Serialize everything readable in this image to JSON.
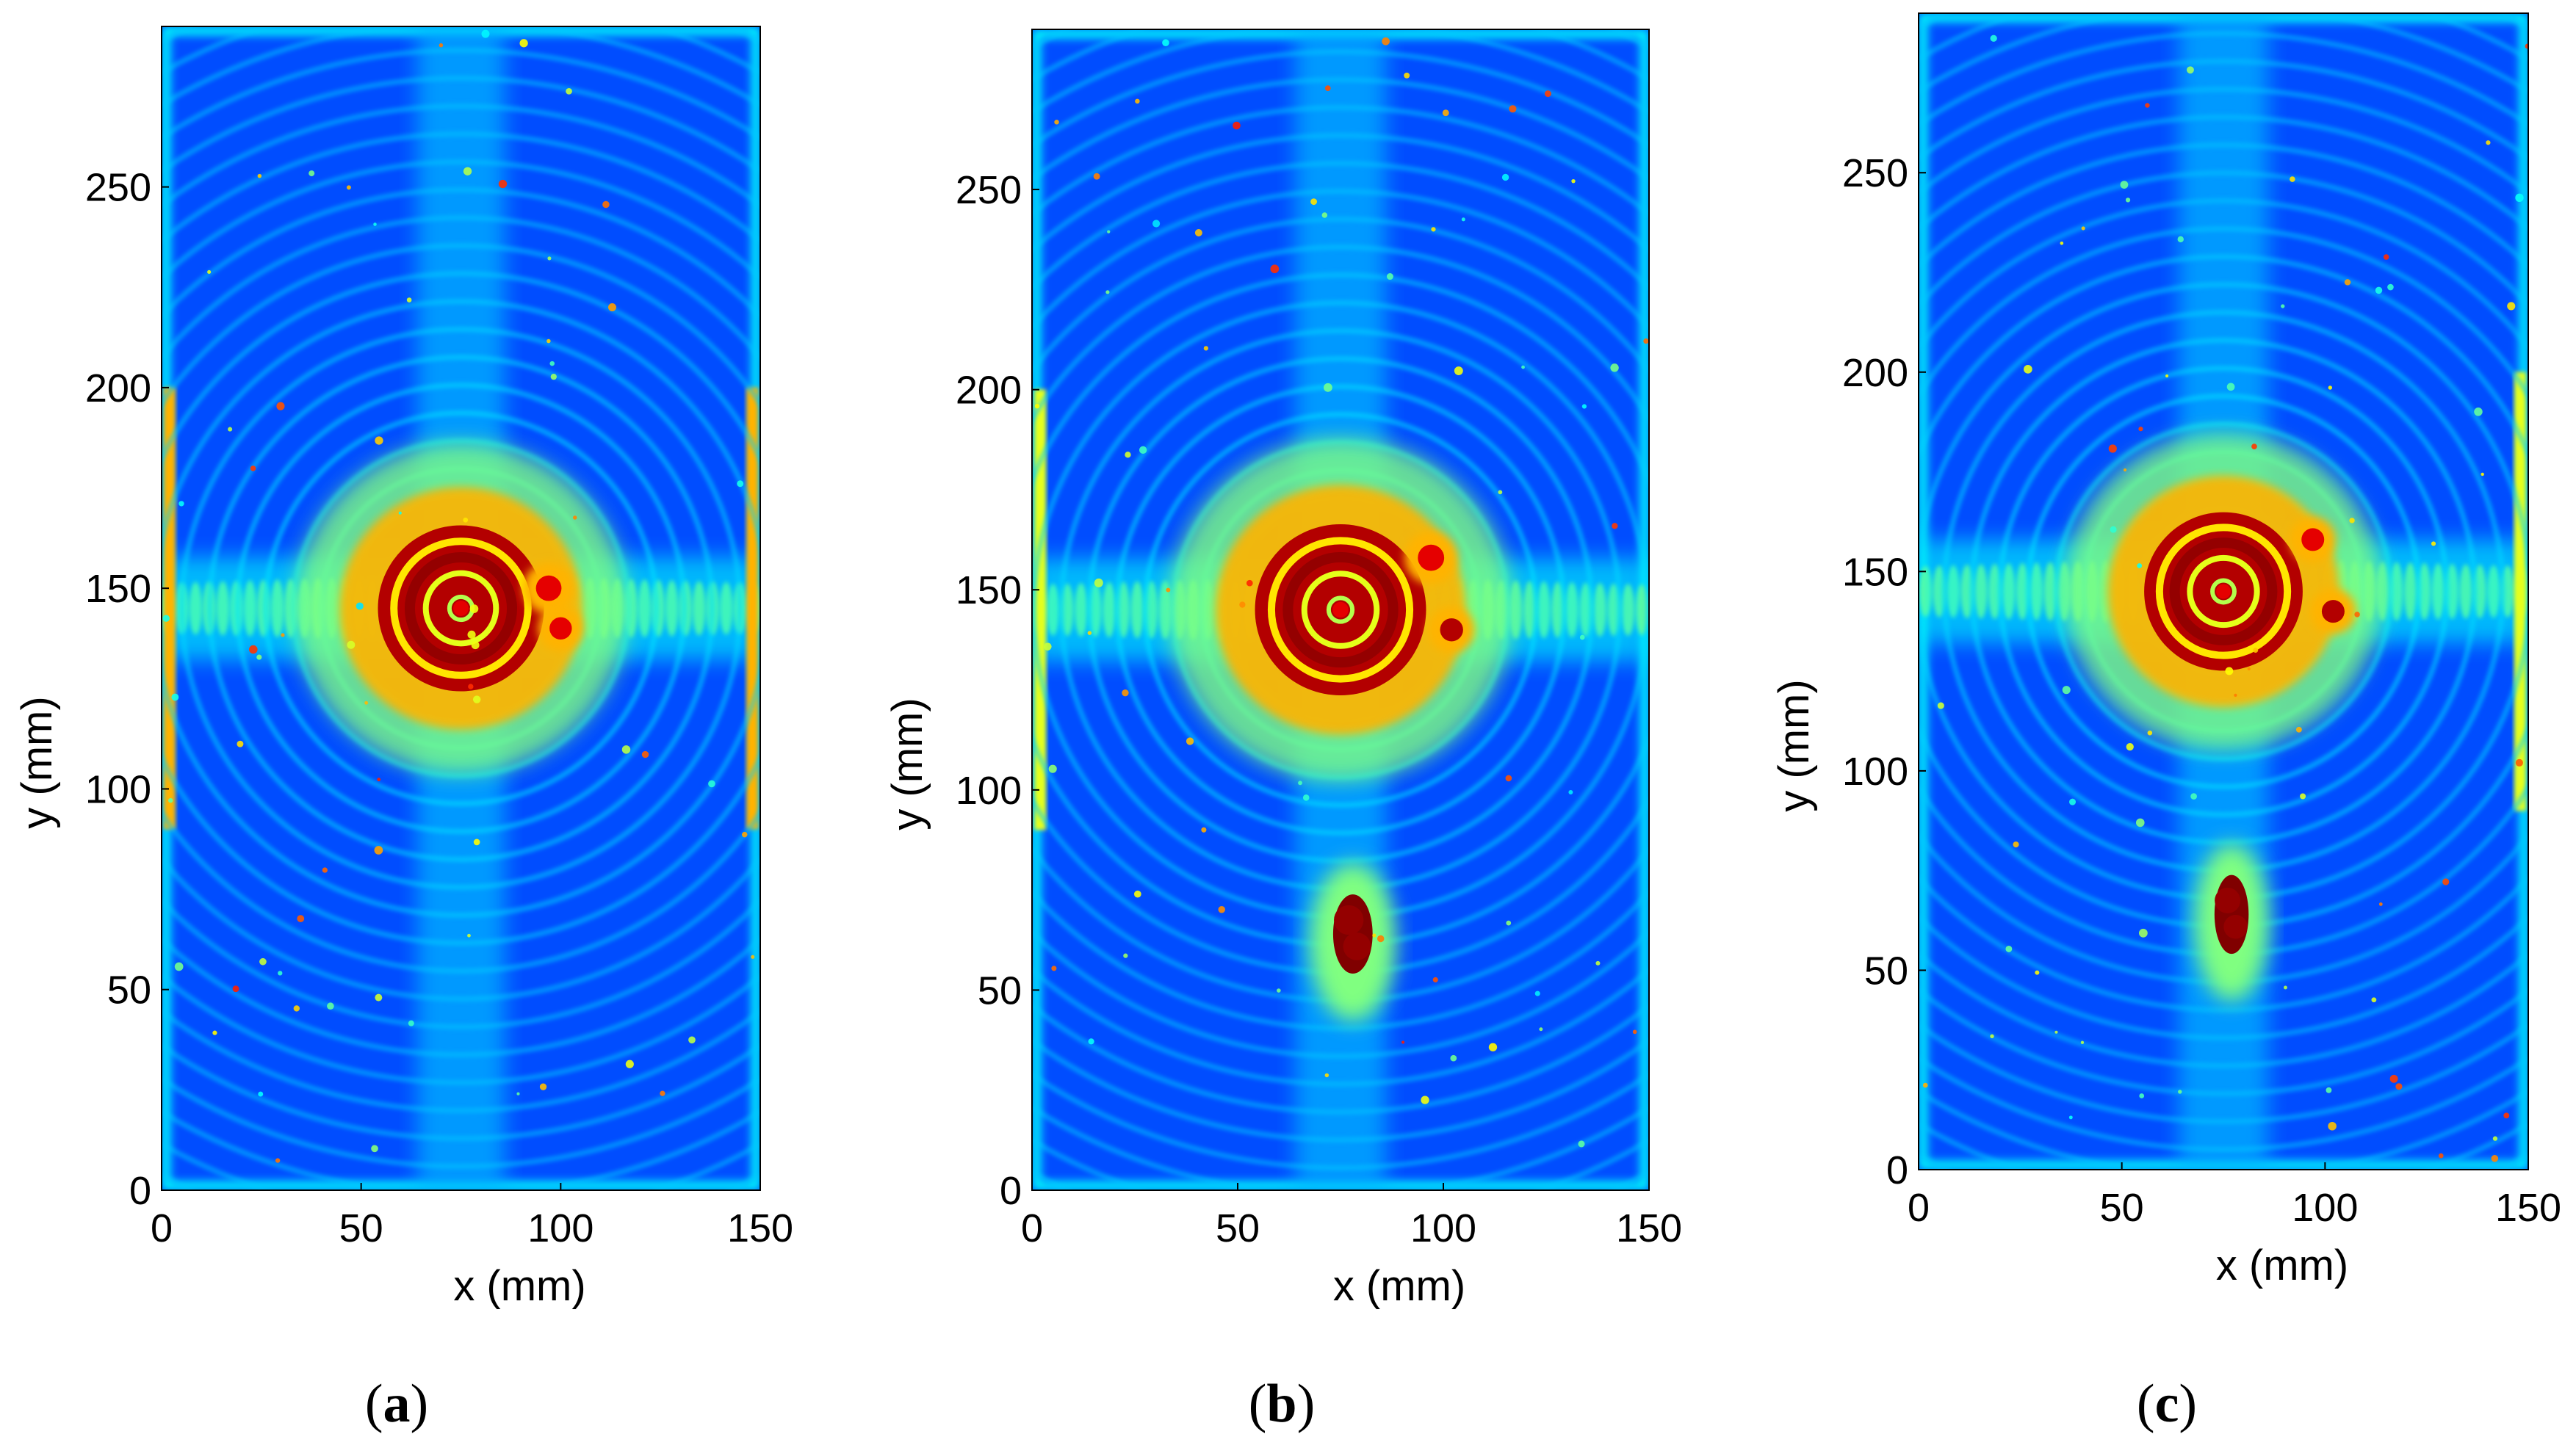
{
  "figure": {
    "panel_labels": [
      {
        "open": "(",
        "letter": "a",
        "close": ")"
      },
      {
        "open": "(",
        "letter": "b",
        "close": ")"
      },
      {
        "open": "(",
        "letter": "c",
        "close": ")"
      }
    ]
  },
  "chart_data": [
    {
      "type": "heatmap",
      "panel": "a",
      "xlabel": "x (mm)",
      "ylabel": "y (mm)",
      "xlim": [
        0,
        150
      ],
      "ylim": [
        0,
        290
      ],
      "xticks": [
        0,
        50,
        100,
        150
      ],
      "yticks": [
        0,
        50,
        100,
        150,
        200,
        250
      ],
      "colormap": "jet",
      "grid": false,
      "features": [
        {
          "kind": "ring-source",
          "x": 75,
          "y": 145,
          "r": 16,
          "intensity": 1.0
        },
        {
          "kind": "hotspot",
          "x": 97,
          "y": 150,
          "r": 4,
          "intensity": 0.9
        },
        {
          "kind": "hotspot",
          "x": 100,
          "y": 140,
          "r": 3.5,
          "intensity": 0.9
        },
        {
          "kind": "horizontal-band",
          "y": 145,
          "intensity": 0.6
        },
        {
          "kind": "edge-band",
          "x": 2,
          "intensity": 0.7
        },
        {
          "kind": "edge-band",
          "x": 148,
          "intensity": 0.7
        }
      ]
    },
    {
      "type": "heatmap",
      "panel": "b",
      "xlabel": "x (mm)",
      "ylabel": "y (mm)",
      "xlim": [
        0,
        150
      ],
      "ylim": [
        0,
        290
      ],
      "xticks": [
        0,
        50,
        100,
        150
      ],
      "yticks": [
        0,
        50,
        100,
        150,
        200,
        250
      ],
      "colormap": "jet",
      "grid": false,
      "features": [
        {
          "kind": "ring-source",
          "x": 75,
          "y": 145,
          "r": 16,
          "intensity": 1.0
        },
        {
          "kind": "hotspot",
          "x": 97,
          "y": 158,
          "r": 4,
          "intensity": 0.9
        },
        {
          "kind": "hotspot",
          "x": 102,
          "y": 140,
          "r": 3.5,
          "intensity": 0.95
        },
        {
          "kind": "defect",
          "x": 78,
          "y": 62,
          "w": 8,
          "h": 22,
          "intensity": 1.0
        },
        {
          "kind": "horizontal-band",
          "y": 145,
          "intensity": 0.6
        },
        {
          "kind": "edge-band",
          "x": 2,
          "intensity": 0.6
        }
      ]
    },
    {
      "type": "heatmap",
      "panel": "c",
      "xlabel": "x (mm)",
      "ylabel": "y (mm)",
      "xlim": [
        0,
        150
      ],
      "ylim": [
        0,
        290
      ],
      "xticks": [
        0,
        50,
        100,
        150
      ],
      "yticks": [
        0,
        50,
        100,
        150,
        200,
        250
      ],
      "colormap": "jet",
      "grid": false,
      "features": [
        {
          "kind": "ring-source",
          "x": 75,
          "y": 145,
          "r": 15,
          "intensity": 1.0
        },
        {
          "kind": "hotspot",
          "x": 97,
          "y": 158,
          "r": 3.5,
          "intensity": 0.9
        },
        {
          "kind": "hotspot",
          "x": 102,
          "y": 140,
          "r": 3.5,
          "intensity": 0.95
        },
        {
          "kind": "defect",
          "x": 77,
          "y": 62,
          "w": 7,
          "h": 22,
          "intensity": 1.0
        },
        {
          "kind": "horizontal-band",
          "y": 145,
          "intensity": 0.6
        },
        {
          "kind": "edge-band",
          "x": 148,
          "intensity": 0.6
        }
      ]
    }
  ]
}
